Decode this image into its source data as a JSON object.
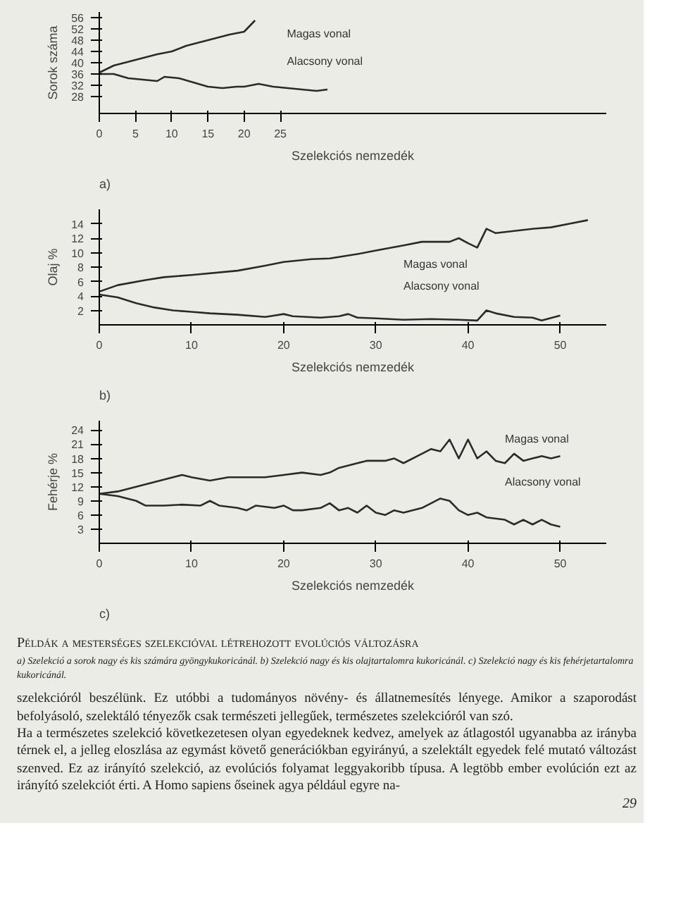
{
  "chart_data": [
    {
      "type": "line",
      "xlabel": "Szelekciós nemzedék",
      "ylabel": "Sorok száma",
      "xlim": [
        0,
        70
      ],
      "ylim": [
        22,
        58
      ],
      "xticks": [
        0,
        5,
        10,
        15,
        20,
        25
      ],
      "yticks": [
        28,
        32,
        36,
        40,
        44,
        48,
        52,
        56
      ],
      "line_style": "solid",
      "series": [
        {
          "color": "#2a2a2a",
          "x": [
            0,
            2,
            5,
            8,
            10,
            12,
            15,
            18,
            20,
            21.5
          ],
          "values": [
            36.5,
            39,
            41,
            43,
            44,
            46,
            48,
            50,
            51,
            55
          ]
        },
        {
          "color": "#2a2a2a",
          "x": [
            0,
            2,
            4,
            6,
            8,
            9,
            11,
            13,
            15,
            17,
            19,
            20,
            22,
            24,
            26,
            28,
            30,
            31.5
          ],
          "values": [
            36,
            36,
            34.5,
            34,
            33.5,
            35,
            34.5,
            33,
            31.5,
            31,
            31.5,
            31.5,
            32.5,
            31.5,
            31,
            30.5,
            30,
            30.5
          ]
        }
      ],
      "annotations": [
        "a)",
        "Magas vonal",
        "Alacsony vonal"
      ]
    },
    {
      "type": "line",
      "xlabel": "Szelekciós nemzedék",
      "ylabel": "Olaj %",
      "xlim": [
        0,
        55
      ],
      "ylim": [
        0,
        16
      ],
      "xticks": [
        0,
        10,
        20,
        30,
        40,
        50
      ],
      "yticks": [
        2,
        4,
        6,
        8,
        10,
        12,
        14
      ],
      "line_style": "solid",
      "series": [
        {
          "color": "#2a2a2a",
          "x": [
            0,
            2,
            5,
            7,
            10,
            15,
            18,
            20,
            23,
            25,
            28,
            30,
            33,
            35,
            38,
            39,
            40,
            41,
            42,
            43,
            45,
            47,
            49,
            51,
            53
          ],
          "values": [
            4.6,
            5.5,
            6.2,
            6.6,
            6.9,
            7.5,
            8.2,
            8.7,
            9.1,
            9.2,
            9.8,
            10.3,
            11,
            11.5,
            11.5,
            12,
            11.3,
            10.7,
            13.3,
            12.7,
            13,
            13.3,
            13.5,
            14,
            14.5
          ]
        },
        {
          "color": "#2a2a2a",
          "x": [
            0,
            2,
            4,
            6,
            8,
            10,
            12,
            15,
            18,
            19,
            20,
            21,
            24,
            26,
            27,
            28,
            30,
            33,
            36,
            39,
            41,
            42,
            43,
            45,
            47,
            48,
            50
          ],
          "values": [
            4.2,
            3.8,
            3,
            2.4,
            2,
            1.8,
            1.6,
            1.4,
            1.1,
            1.3,
            1.5,
            1.2,
            1,
            1.2,
            1.5,
            1,
            0.9,
            0.7,
            0.8,
            0.7,
            0.6,
            2,
            1.6,
            1.1,
            1,
            0.6,
            1.3
          ]
        }
      ],
      "annotations": [
        "b)",
        "Magas vonal",
        "Alacsony vonal"
      ]
    },
    {
      "type": "line",
      "xlabel": "Szelekciós nemzedék",
      "ylabel": "Fehérje %",
      "xlim": [
        0,
        55
      ],
      "ylim": [
        0,
        26
      ],
      "xticks": [
        0,
        10,
        20,
        30,
        40,
        50
      ],
      "yticks": [
        3,
        6,
        9,
        12,
        15,
        18,
        21,
        24
      ],
      "line_style": "solid",
      "series": [
        {
          "color": "#2a2a2a",
          "x": [
            0,
            2,
            4,
            6,
            8,
            9,
            10,
            12,
            14,
            16,
            18,
            20,
            22,
            24,
            25,
            26,
            28,
            29,
            31,
            32,
            33,
            35,
            36,
            37,
            38,
            39,
            40,
            41,
            42,
            43,
            44,
            45,
            46,
            47,
            48,
            49,
            50
          ],
          "values": [
            10.5,
            11,
            12,
            13,
            14,
            14.5,
            14,
            13.3,
            14,
            14,
            14,
            14.5,
            15,
            14.5,
            15,
            16,
            17,
            17.5,
            17.5,
            18,
            17,
            19,
            20,
            19.5,
            22,
            18,
            22,
            18,
            19.5,
            17.5,
            17,
            19,
            17.5,
            18,
            18.5,
            18,
            18.5
          ]
        },
        {
          "color": "#2a2a2a",
          "x": [
            0,
            2,
            4,
            5,
            7,
            9,
            11,
            12,
            13,
            15,
            16,
            17,
            19,
            20,
            21,
            22,
            24,
            25,
            26,
            27,
            28,
            29,
            30,
            31,
            32,
            33,
            35,
            36,
            37,
            38,
            39,
            40,
            41,
            42,
            44,
            45,
            46,
            47,
            48,
            49,
            50
          ],
          "values": [
            10.5,
            10,
            9,
            8,
            8,
            8.2,
            8,
            9,
            8,
            7.5,
            7,
            8,
            7.5,
            8,
            7,
            7,
            7.5,
            8.5,
            7,
            7.5,
            6.5,
            8,
            6.5,
            6,
            7,
            6.5,
            7.5,
            8.5,
            9.5,
            9,
            7,
            6,
            6.5,
            5.5,
            5,
            4,
            5,
            4,
            5,
            4,
            3.5
          ]
        }
      ],
      "annotations": [
        "c)",
        "Magas vonal",
        "Alacsony vonal",
        "Példák a mesterséges szelekcióval létrehozott evolúciós változásra",
        "a) Szelekció a sorok nagy és kis számára gyöngykukoricánál. b) Szelekció nagy és kis olajtartalomra kukoricánál. c) Szelekció nagy és kis fehérjetartalomra kukoricánál.",
        "szelekcióról beszélünk. Ez utóbbi a tudományos növény- és állatnemesítés lényege. Amikor a szaporodást befolyásoló, szelektáló tényezők csak természeti jellegűek, természetes szelekcióról van szó.",
        "Ha a természetes szelekció következetesen olyan egyedeknek kedvez, amelyek az átlagostól ugyanabba az irányba térnek el, a jelleg eloszlása az egymást követő generációkban egyirányú, a szelektált egyedek felé mutató változást szenved. Ez az irányító szelekció, az evolúciós folyamat leggyakoribb típusa. A legtöbb ember evolúción ezt az irányító szelekciót érti. A Homo sapiens őseinek agya például egyre na-",
        "29"
      ]
    }
  ]
}
